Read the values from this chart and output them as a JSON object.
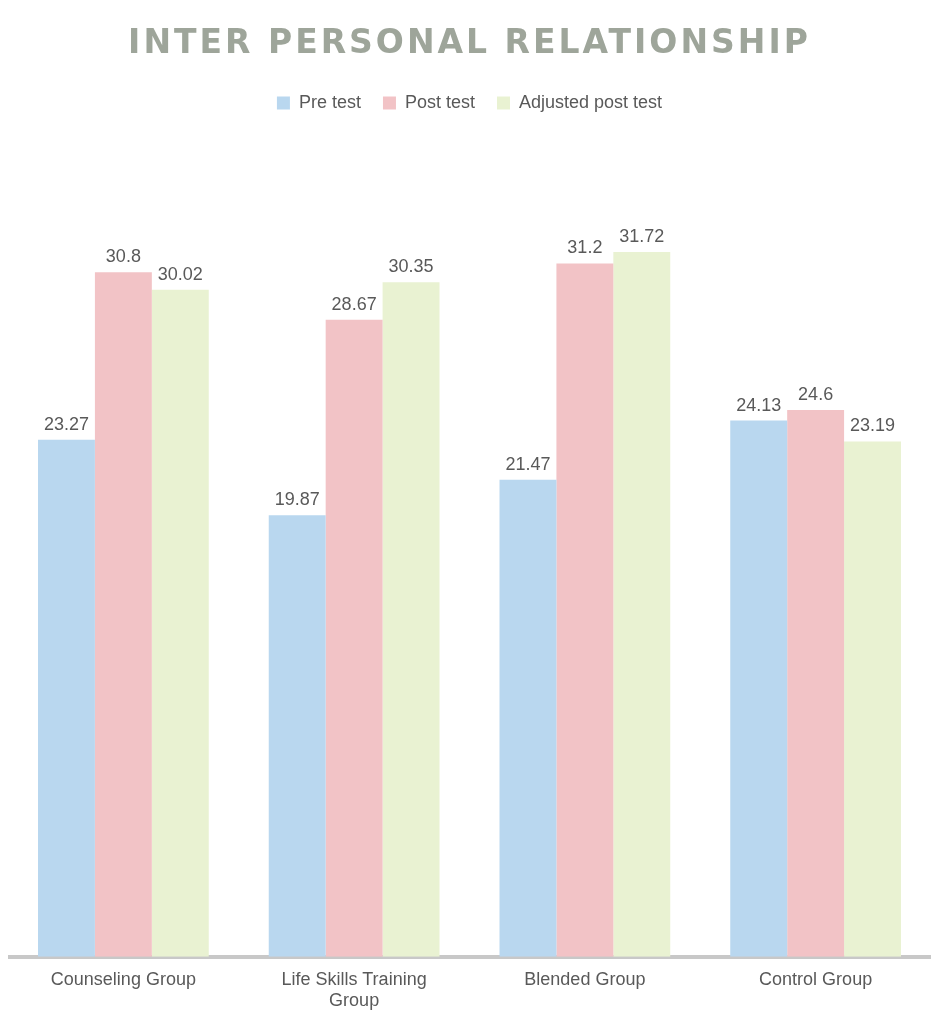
{
  "chart_data": {
    "type": "bar",
    "title": "INTER PERSONAL RELATIONSHIP",
    "categories": [
      "Counseling Group",
      "Life Skills Training Group",
      "Blended Group",
      "Control Group"
    ],
    "series": [
      {
        "name": "Pre test",
        "color": "#b9d7ef",
        "values": [
          23.27,
          19.87,
          21.47,
          24.13
        ]
      },
      {
        "name": "Post test",
        "color": "#f2c3c6",
        "values": [
          30.8,
          28.67,
          31.2,
          24.6
        ]
      },
      {
        "name": "Adjusted post test",
        "color": "#e9f2d2",
        "values": [
          30.02,
          30.35,
          31.72,
          23.19
        ]
      }
    ],
    "data_labels": true,
    "legend": "top",
    "grid": false
  }
}
